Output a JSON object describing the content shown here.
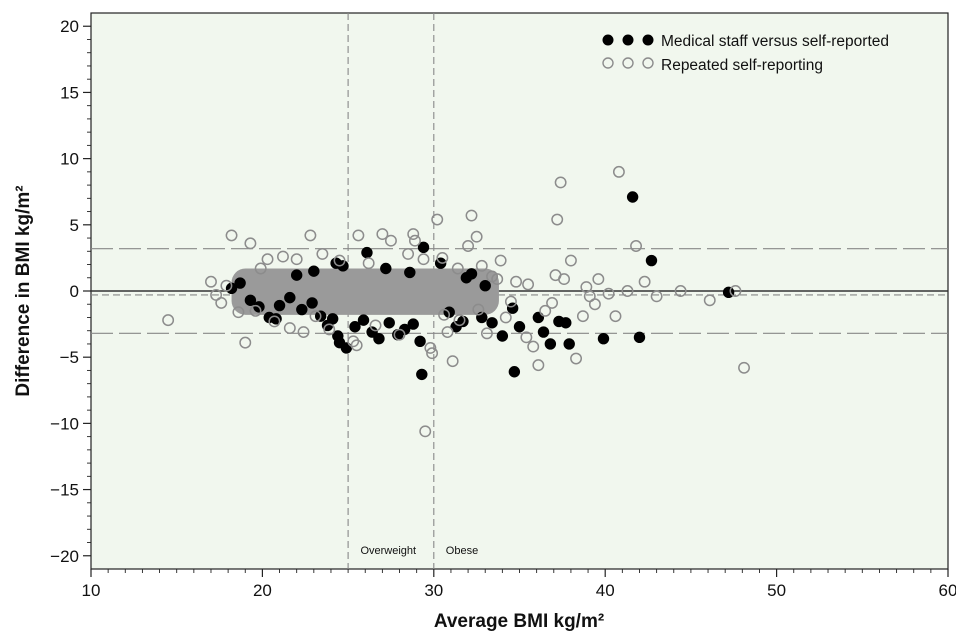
{
  "chart_data": {
    "type": "scatter",
    "xlabel": "Average BMI kg/m²",
    "ylabel": "Difference in BMI kg/m²",
    "xlim": [
      10,
      60
    ],
    "ylim": [
      -21,
      21
    ],
    "x_ticks": [
      10,
      20,
      30,
      40,
      50,
      60
    ],
    "y_ticks": [
      -20,
      -15,
      -10,
      -5,
      0,
      5,
      10,
      15,
      20
    ],
    "background_color": "#f1f7ee",
    "grid": false,
    "legend_position": "top-right",
    "reference_lines": {
      "horizontal": [
        {
          "y": 0,
          "style": "solid",
          "color": "#333333"
        },
        {
          "y": -0.3,
          "style": "dashed",
          "color": "#888888"
        },
        {
          "y": 3.2,
          "style": "long-dash",
          "color": "#888888"
        },
        {
          "y": -3.2,
          "style": "long-dash",
          "color": "#888888"
        }
      ],
      "vertical": [
        {
          "x": 25,
          "style": "dashed",
          "color": "#888888"
        },
        {
          "x": 30,
          "style": "dashed",
          "color": "#888888"
        }
      ]
    },
    "annotations": [
      {
        "text": "Overweight",
        "x": 25,
        "align": "right"
      },
      {
        "text": "Obese",
        "x": 30,
        "align": "left"
      }
    ],
    "series": [
      {
        "name": "Medical staff versus self-reported",
        "marker": "filled-circle",
        "color": "#000000",
        "points": [
          [
            18.2,
            0.2
          ],
          [
            18.7,
            0.6
          ],
          [
            19.3,
            -0.7
          ],
          [
            19.8,
            -1.2
          ],
          [
            20.4,
            -2.0
          ],
          [
            21.0,
            -1.1
          ],
          [
            21.6,
            -0.5
          ],
          [
            22.3,
            -1.4
          ],
          [
            22.9,
            -0.9
          ],
          [
            23.4,
            -1.9
          ],
          [
            23.8,
            -2.6
          ],
          [
            24.1,
            -2.1
          ],
          [
            24.4,
            -3.4
          ],
          [
            24.5,
            -3.9
          ],
          [
            24.9,
            -4.3
          ],
          [
            24.3,
            2.1
          ],
          [
            24.7,
            1.9
          ],
          [
            25.4,
            -2.7
          ],
          [
            25.9,
            -2.2
          ],
          [
            26.4,
            -3.1
          ],
          [
            26.8,
            -3.6
          ],
          [
            27.4,
            -2.4
          ],
          [
            27.9,
            -3.3
          ],
          [
            28.3,
            -2.9
          ],
          [
            28.8,
            -2.5
          ],
          [
            29.2,
            -3.8
          ],
          [
            29.4,
            3.3
          ],
          [
            29.3,
            -6.3
          ],
          [
            28.6,
            1.4
          ],
          [
            26.1,
            2.9
          ],
          [
            30.4,
            2.1
          ],
          [
            30.9,
            -1.6
          ],
          [
            31.3,
            -2.7
          ],
          [
            31.7,
            -2.3
          ],
          [
            32.2,
            1.3
          ],
          [
            32.8,
            -2.0
          ],
          [
            33.4,
            -2.4
          ],
          [
            34.0,
            -3.4
          ],
          [
            34.6,
            -1.3
          ],
          [
            35.0,
            -2.7
          ],
          [
            34.7,
            -6.1
          ],
          [
            36.1,
            -2.0
          ],
          [
            36.4,
            -3.1
          ],
          [
            36.8,
            -4.0
          ],
          [
            37.3,
            -2.3
          ],
          [
            37.7,
            -2.4
          ],
          [
            37.9,
            -4.0
          ],
          [
            39.9,
            -3.6
          ],
          [
            41.6,
            7.1
          ],
          [
            42.0,
            -3.5
          ],
          [
            42.7,
            2.3
          ],
          [
            47.2,
            -0.1
          ],
          [
            31.9,
            1.0
          ],
          [
            33.0,
            0.4
          ],
          [
            22.0,
            1.2
          ],
          [
            23.0,
            1.5
          ],
          [
            20.8,
            -2.1
          ],
          [
            27.2,
            1.7
          ]
        ]
      },
      {
        "name": "Repeated self-reporting",
        "marker": "open-circle",
        "color": "#8c8c8c",
        "points": [
          [
            14.5,
            -2.2
          ],
          [
            17.0,
            0.7
          ],
          [
            17.3,
            -0.3
          ],
          [
            17.6,
            -0.9
          ],
          [
            17.9,
            0.4
          ],
          [
            18.2,
            4.2
          ],
          [
            18.6,
            -1.6
          ],
          [
            19.0,
            -3.9
          ],
          [
            19.3,
            3.6
          ],
          [
            19.6,
            -1.5
          ],
          [
            19.9,
            1.7
          ],
          [
            20.3,
            2.4
          ],
          [
            20.7,
            -2.3
          ],
          [
            21.2,
            2.6
          ],
          [
            21.6,
            -2.8
          ],
          [
            22.0,
            2.4
          ],
          [
            22.4,
            -3.1
          ],
          [
            22.8,
            4.2
          ],
          [
            23.1,
            -1.9
          ],
          [
            23.5,
            2.8
          ],
          [
            23.9,
            -2.9
          ],
          [
            24.5,
            2.3
          ],
          [
            25.3,
            -3.8
          ],
          [
            25.5,
            -4.1
          ],
          [
            25.6,
            4.2
          ],
          [
            26.2,
            2.1
          ],
          [
            26.6,
            -2.6
          ],
          [
            27.0,
            4.3
          ],
          [
            27.5,
            3.8
          ],
          [
            28.0,
            -3.3
          ],
          [
            28.5,
            2.8
          ],
          [
            28.8,
            4.3
          ],
          [
            28.9,
            3.8
          ],
          [
            29.4,
            2.4
          ],
          [
            29.8,
            -4.3
          ],
          [
            29.9,
            -4.7
          ],
          [
            29.5,
            -10.6
          ],
          [
            30.2,
            5.4
          ],
          [
            30.5,
            2.5
          ],
          [
            30.8,
            -3.1
          ],
          [
            31.1,
            -5.3
          ],
          [
            31.5,
            -2.2
          ],
          [
            32.0,
            3.4
          ],
          [
            32.2,
            5.7
          ],
          [
            32.5,
            4.1
          ],
          [
            32.8,
            1.9
          ],
          [
            33.1,
            -3.2
          ],
          [
            33.4,
            1.1
          ],
          [
            33.9,
            2.3
          ],
          [
            34.2,
            -2.0
          ],
          [
            34.8,
            0.7
          ],
          [
            35.4,
            -3.5
          ],
          [
            35.8,
            -4.2
          ],
          [
            36.1,
            -5.6
          ],
          [
            36.5,
            -1.5
          ],
          [
            37.1,
            1.2
          ],
          [
            37.2,
            5.4
          ],
          [
            37.4,
            8.2
          ],
          [
            37.6,
            0.9
          ],
          [
            38.0,
            2.3
          ],
          [
            38.3,
            -5.1
          ],
          [
            38.7,
            -1.9
          ],
          [
            39.1,
            -0.4
          ],
          [
            39.6,
            0.9
          ],
          [
            40.2,
            -0.2
          ],
          [
            40.6,
            -1.9
          ],
          [
            40.8,
            9.0
          ],
          [
            41.3,
            0.0
          ],
          [
            41.8,
            3.4
          ],
          [
            42.3,
            0.7
          ],
          [
            43.0,
            -0.4
          ],
          [
            44.4,
            0.0
          ],
          [
            46.1,
            -0.7
          ],
          [
            47.6,
            0.0
          ],
          [
            48.1,
            -5.8
          ],
          [
            38.9,
            0.3
          ],
          [
            39.4,
            -1.0
          ],
          [
            36.9,
            -0.9
          ],
          [
            35.5,
            0.5
          ],
          [
            34.5,
            -0.8
          ],
          [
            33.7,
            0.9
          ],
          [
            32.6,
            -1.4
          ],
          [
            31.4,
            1.7
          ],
          [
            30.6,
            -1.8
          ]
        ]
      }
    ]
  }
}
